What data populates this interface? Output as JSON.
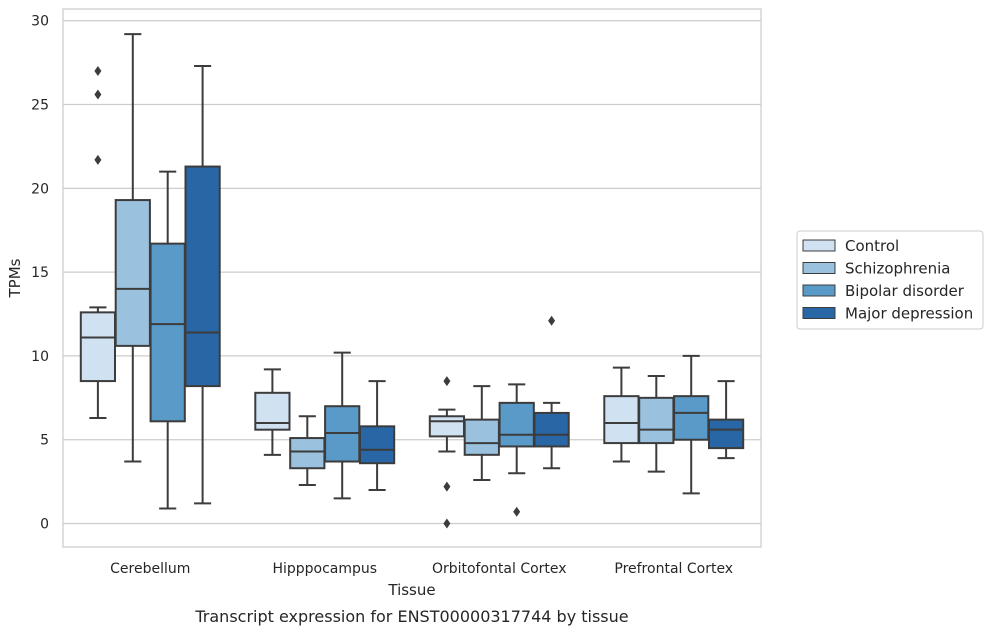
{
  "chart_data": {
    "type": "box",
    "caption": "Transcript expression for ENST00000317744 by tissue",
    "xlabel": "Tissue",
    "ylabel": "TPMs",
    "ylim": [
      -1.4,
      30.7
    ],
    "yticks": [
      0,
      5,
      10,
      15,
      20,
      25,
      30
    ],
    "grid": true,
    "legend_position": "right",
    "categories": [
      "Cerebellum",
      "Hipppocampus",
      "Orbitofontal Cortex",
      "Prefrontal Cortex"
    ],
    "series": [
      {
        "name": "Control",
        "color": "#d0e1f2",
        "boxes": [
          {
            "whisker_low": 6.3,
            "q1": 8.5,
            "median": 11.1,
            "q3": 12.6,
            "whisker_high": 12.9,
            "outliers": [
              21.7,
              25.6,
              27.0
            ]
          },
          {
            "whisker_low": 4.1,
            "q1": 5.6,
            "median": 6.0,
            "q3": 7.8,
            "whisker_high": 9.2,
            "outliers": []
          },
          {
            "whisker_low": 4.3,
            "q1": 5.2,
            "median": 6.1,
            "q3": 6.4,
            "whisker_high": 6.8,
            "outliers": [
              0.0,
              2.2,
              8.5
            ]
          },
          {
            "whisker_low": 3.7,
            "q1": 4.8,
            "median": 6.0,
            "q3": 7.6,
            "whisker_high": 9.3,
            "outliers": []
          }
        ]
      },
      {
        "name": "Schizophrenia",
        "color": "#9ac2de",
        "boxes": [
          {
            "whisker_low": 3.7,
            "q1": 10.6,
            "median": 14.0,
            "q3": 19.3,
            "whisker_high": 29.2,
            "outliers": []
          },
          {
            "whisker_low": 2.3,
            "q1": 3.3,
            "median": 4.3,
            "q3": 5.1,
            "whisker_high": 6.4,
            "outliers": []
          },
          {
            "whisker_low": 2.6,
            "q1": 4.1,
            "median": 4.8,
            "q3": 6.2,
            "whisker_high": 8.2,
            "outliers": []
          },
          {
            "whisker_low": 3.1,
            "q1": 4.8,
            "median": 5.6,
            "q3": 7.5,
            "whisker_high": 8.8,
            "outliers": []
          }
        ]
      },
      {
        "name": "Bipolar disorder",
        "color": "#5a9ac8",
        "boxes": [
          {
            "whisker_low": 0.9,
            "q1": 6.1,
            "median": 11.9,
            "q3": 16.7,
            "whisker_high": 21.0,
            "outliers": []
          },
          {
            "whisker_low": 1.5,
            "q1": 3.7,
            "median": 5.4,
            "q3": 7.0,
            "whisker_high": 10.2,
            "outliers": []
          },
          {
            "whisker_low": 3.0,
            "q1": 4.6,
            "median": 5.3,
            "q3": 7.2,
            "whisker_high": 8.3,
            "outliers": [
              0.7
            ]
          },
          {
            "whisker_low": 1.8,
            "q1": 5.0,
            "median": 6.6,
            "q3": 7.6,
            "whisker_high": 10.0,
            "outliers": []
          }
        ]
      },
      {
        "name": "Major depression",
        "color": "#2866a5",
        "boxes": [
          {
            "whisker_low": 1.2,
            "q1": 8.2,
            "median": 11.4,
            "q3": 21.3,
            "whisker_high": 27.3,
            "outliers": []
          },
          {
            "whisker_low": 2.0,
            "q1": 3.6,
            "median": 4.4,
            "q3": 5.8,
            "whisker_high": 8.5,
            "outliers": []
          },
          {
            "whisker_low": 3.3,
            "q1": 4.6,
            "median": 5.3,
            "q3": 6.6,
            "whisker_high": 7.2,
            "outliers": [
              12.1
            ]
          },
          {
            "whisker_low": 3.9,
            "q1": 4.5,
            "median": 5.6,
            "q3": 6.2,
            "whisker_high": 8.5,
            "outliers": []
          }
        ]
      }
    ]
  }
}
